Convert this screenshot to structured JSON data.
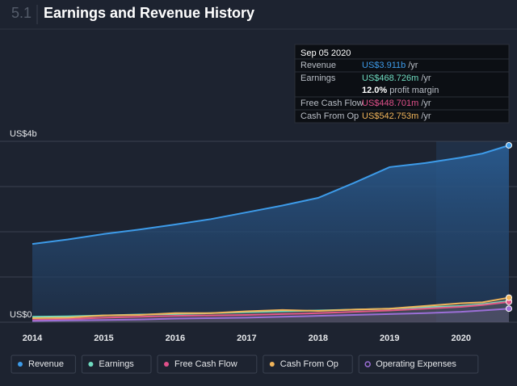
{
  "section": "5.1",
  "chart_data": {
    "type": "line",
    "title": "Earnings and Revenue History",
    "x": [
      2014,
      2014.5,
      2015,
      2015.5,
      2016,
      2016.5,
      2017,
      2017.5,
      2018,
      2018.5,
      2019,
      2019.5,
      2020,
      2020.3,
      2020.67
    ],
    "xlim": [
      2014,
      2020.67
    ],
    "xticks": [
      2014,
      2015,
      2016,
      2017,
      2018,
      2019,
      2020
    ],
    "ylim": [
      0,
      4
    ],
    "yticks": [
      {
        "value": 0,
        "label": "US$0"
      },
      {
        "value": 4,
        "label": "US$4b"
      }
    ],
    "ygrid": [
      0,
      1,
      2,
      3,
      4
    ],
    "series": [
      {
        "name": "Revenue",
        "color": "#3d9be9",
        "area": true,
        "values": [
          1.73,
          1.83,
          1.95,
          2.05,
          2.16,
          2.28,
          2.43,
          2.58,
          2.75,
          3.08,
          3.43,
          3.52,
          3.64,
          3.73,
          3.911
        ]
      },
      {
        "name": "Earnings",
        "color": "#6fdcc0",
        "values": [
          0.12,
          0.13,
          0.15,
          0.17,
          0.18,
          0.2,
          0.22,
          0.24,
          0.26,
          0.28,
          0.3,
          0.33,
          0.36,
          0.4,
          0.469
        ]
      },
      {
        "name": "Free Cash Flow",
        "color": "#e0508a",
        "values": [
          0.05,
          0.07,
          0.1,
          0.12,
          0.14,
          0.15,
          0.16,
          0.18,
          0.2,
          0.23,
          0.26,
          0.3,
          0.34,
          0.38,
          0.449
        ]
      },
      {
        "name": "Cash From Op",
        "color": "#f0b45a",
        "values": [
          0.09,
          0.1,
          0.15,
          0.16,
          0.2,
          0.2,
          0.24,
          0.27,
          0.25,
          0.28,
          0.3,
          0.36,
          0.42,
          0.44,
          0.543
        ]
      },
      {
        "name": "Operating Expenses",
        "color": "#9b6fd6",
        "values": [
          0.03,
          0.04,
          0.05,
          0.06,
          0.08,
          0.09,
          0.1,
          0.12,
          0.14,
          0.16,
          0.18,
          0.2,
          0.23,
          0.26,
          0.3
        ]
      }
    ]
  },
  "tooltip": {
    "date": "Sep 05 2020",
    "rows": [
      {
        "label": "Revenue",
        "value": "US$3.911b",
        "unit": "/yr",
        "color": "#3d9be9"
      },
      {
        "label": "Earnings",
        "value": "US$468.726m",
        "unit": "/yr",
        "color": "#6fdcc0"
      },
      {
        "label": "Free Cash Flow",
        "value": "US$448.701m",
        "unit": "/yr",
        "color": "#e0508a"
      },
      {
        "label": "Cash From Op",
        "value": "US$542.753m",
        "unit": "/yr",
        "color": "#f0b45a"
      }
    ],
    "margin": "12.0%",
    "margin_label": "profit margin"
  }
}
